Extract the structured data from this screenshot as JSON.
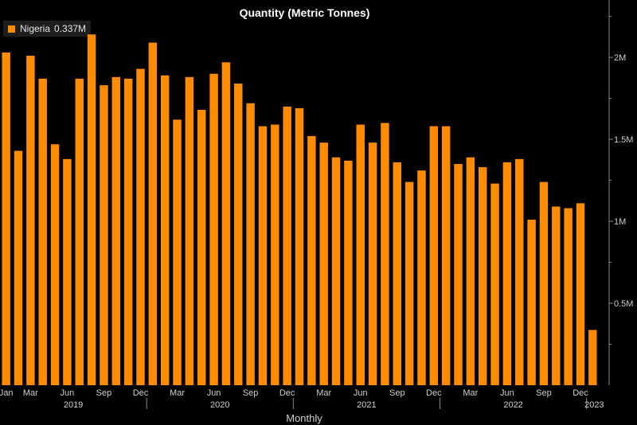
{
  "chart_data": {
    "type": "bar",
    "title": "Quantity (Metric Tonnes)",
    "xlabel": "Monthly",
    "ylabel": "",
    "ylim": [
      0,
      2.35
    ],
    "y_unit": "M",
    "yticks": [
      {
        "value": 0.5,
        "label": "0.5M"
      },
      {
        "value": 1.0,
        "label": "1M"
      },
      {
        "value": 1.5,
        "label": "1.5M"
      },
      {
        "value": 2.0,
        "label": "2M"
      }
    ],
    "categories": [
      "2019-01",
      "2019-02",
      "2019-03",
      "2019-04",
      "2019-05",
      "2019-06",
      "2019-07",
      "2019-08",
      "2019-09",
      "2019-10",
      "2019-11",
      "2019-12",
      "2020-01",
      "2020-02",
      "2020-03",
      "2020-04",
      "2020-05",
      "2020-06",
      "2020-07",
      "2020-08",
      "2020-09",
      "2020-10",
      "2020-11",
      "2020-12",
      "2021-01",
      "2021-02",
      "2021-03",
      "2021-04",
      "2021-05",
      "2021-06",
      "2021-07",
      "2021-08",
      "2021-09",
      "2021-10",
      "2021-11",
      "2021-12",
      "2022-01",
      "2022-02",
      "2022-03",
      "2022-04",
      "2022-05",
      "2022-06",
      "2022-07",
      "2022-08",
      "2022-09",
      "2022-10",
      "2022-11",
      "2022-12",
      "2023-01"
    ],
    "series": [
      {
        "name": "Nigeria",
        "color": "#ff8c00",
        "values": [
          2.03,
          1.43,
          2.01,
          1.87,
          1.47,
          1.38,
          1.87,
          2.14,
          1.83,
          1.88,
          1.87,
          1.93,
          2.09,
          1.89,
          1.62,
          1.88,
          1.68,
          1.9,
          1.97,
          1.84,
          1.72,
          1.58,
          1.59,
          1.7,
          1.69,
          1.52,
          1.48,
          1.39,
          1.37,
          1.59,
          1.48,
          1.6,
          1.36,
          1.24,
          1.31,
          1.58,
          1.58,
          1.35,
          1.39,
          1.33,
          1.23,
          1.36,
          1.38,
          1.01,
          1.24,
          1.09,
          1.08,
          1.11,
          0.337
        ]
      }
    ],
    "legend": {
      "label": "Nigeria",
      "value": "0.337M",
      "position": "top-left"
    },
    "month_tick_labels": [
      {
        "index": 0,
        "label": "Jan"
      },
      {
        "index": 2,
        "label": "Mar"
      },
      {
        "index": 5,
        "label": "Jun"
      },
      {
        "index": 8,
        "label": "Sep"
      },
      {
        "index": 11,
        "label": "Dec"
      },
      {
        "index": 14,
        "label": "Mar"
      },
      {
        "index": 17,
        "label": "Jun"
      },
      {
        "index": 20,
        "label": "Sep"
      },
      {
        "index": 23,
        "label": "Dec"
      },
      {
        "index": 26,
        "label": "Mar"
      },
      {
        "index": 29,
        "label": "Jun"
      },
      {
        "index": 32,
        "label": "Sep"
      },
      {
        "index": 35,
        "label": "Dec"
      },
      {
        "index": 38,
        "label": "Mar"
      },
      {
        "index": 41,
        "label": "Jun"
      },
      {
        "index": 44,
        "label": "Sep"
      },
      {
        "index": 47,
        "label": "Dec"
      }
    ],
    "year_labels": [
      {
        "start": 0,
        "count": 12,
        "label": "2019"
      },
      {
        "start": 12,
        "count": 12,
        "label": "2020"
      },
      {
        "start": 24,
        "count": 12,
        "label": "2021"
      },
      {
        "start": 36,
        "count": 12,
        "label": "2022"
      },
      {
        "start": 48,
        "count": 1,
        "label": "2023"
      }
    ],
    "grid": false
  }
}
